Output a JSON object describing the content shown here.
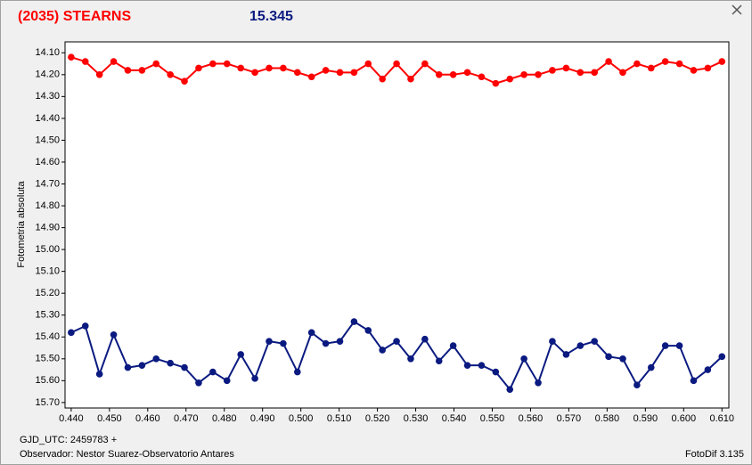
{
  "chart_data": {
    "type": "line",
    "title": "(2035) STEARNS",
    "subtitle": "15.345",
    "ylabel": "Fotometria absoluta",
    "x": [
      0.44,
      0.4437,
      0.4474,
      0.4511,
      0.4548,
      0.4585,
      0.4622,
      0.4659,
      0.4696,
      0.4733,
      0.477,
      0.4807,
      0.4843,
      0.488,
      0.4917,
      0.4954,
      0.4991,
      0.5028,
      0.5065,
      0.5102,
      0.5139,
      0.5176,
      0.5213,
      0.525,
      0.5287,
      0.5324,
      0.5361,
      0.5398,
      0.5435,
      0.5472,
      0.5509,
      0.5546,
      0.5583,
      0.562,
      0.5657,
      0.5693,
      0.573,
      0.5767,
      0.5804,
      0.5841,
      0.5878,
      0.5915,
      0.5952,
      0.5989,
      0.6026,
      0.6063,
      0.61
    ],
    "series": [
      {
        "color": "#ff0000",
        "values": [
          14.12,
          14.14,
          14.2,
          14.14,
          14.18,
          14.18,
          14.15,
          14.2,
          14.23,
          14.17,
          14.15,
          14.15,
          14.17,
          14.19,
          14.17,
          14.17,
          14.19,
          14.21,
          14.18,
          14.19,
          14.19,
          14.15,
          14.22,
          14.15,
          14.22,
          14.15,
          14.2,
          14.2,
          14.19,
          14.21,
          14.24,
          14.22,
          14.2,
          14.2,
          14.18,
          14.17,
          14.19,
          14.19,
          14.14,
          14.19,
          14.15,
          14.17,
          14.14,
          14.15,
          14.18,
          14.17,
          14.14
        ]
      },
      {
        "color": "#0a1a80",
        "values": [
          15.38,
          15.35,
          15.57,
          15.39,
          15.54,
          15.53,
          15.5,
          15.52,
          15.54,
          15.61,
          15.56,
          15.6,
          15.48,
          15.59,
          15.42,
          15.43,
          15.56,
          15.38,
          15.43,
          15.42,
          15.33,
          15.37,
          15.46,
          15.42,
          15.5,
          15.41,
          15.51,
          15.44,
          15.53,
          15.53,
          15.56,
          15.64,
          15.5,
          15.61,
          15.42,
          15.48,
          15.44,
          15.42,
          15.49,
          15.5,
          15.62,
          15.54,
          15.44,
          15.44,
          15.6,
          15.55,
          15.49
        ]
      }
    ],
    "xlim": [
      0.4384,
      0.6118
    ],
    "ylim": [
      14.05,
      15.725
    ],
    "y_inverted": true,
    "xticks": [
      {
        "value": 0.44,
        "label": "0.440"
      },
      {
        "value": 0.45,
        "label": "0.450"
      },
      {
        "value": 0.46,
        "label": "0.460"
      },
      {
        "value": 0.47,
        "label": "0.470"
      },
      {
        "value": 0.48,
        "label": "0.480"
      },
      {
        "value": 0.49,
        "label": "0.490"
      },
      {
        "value": 0.5,
        "label": "0.500"
      },
      {
        "value": 0.51,
        "label": "0.510"
      },
      {
        "value": 0.52,
        "label": "0.520"
      },
      {
        "value": 0.53,
        "label": "0.530"
      },
      {
        "value": 0.54,
        "label": "0.540"
      },
      {
        "value": 0.55,
        "label": "0.550"
      },
      {
        "value": 0.56,
        "label": "0.560"
      },
      {
        "value": 0.57,
        "label": "0.570"
      },
      {
        "value": 0.58,
        "label": "0.580"
      },
      {
        "value": 0.59,
        "label": "0.590"
      },
      {
        "value": 0.6,
        "label": "0.600"
      },
      {
        "value": 0.61,
        "label": "0.610"
      }
    ],
    "yticks": [
      {
        "value": 14.1,
        "label": "14.10"
      },
      {
        "value": 14.2,
        "label": "14.20"
      },
      {
        "value": 14.3,
        "label": "14.30"
      },
      {
        "value": 14.4,
        "label": "14.40"
      },
      {
        "value": 14.5,
        "label": "14.50"
      },
      {
        "value": 14.6,
        "label": "14.60"
      },
      {
        "value": 14.7,
        "label": "14.70"
      },
      {
        "value": 14.8,
        "label": "14.80"
      },
      {
        "value": 14.9,
        "label": "14.90"
      },
      {
        "value": 15.0,
        "label": "15.00"
      },
      {
        "value": 15.1,
        "label": "15.10"
      },
      {
        "value": 15.2,
        "label": "15.20"
      },
      {
        "value": 15.3,
        "label": "15.30"
      },
      {
        "value": 15.4,
        "label": "15.40"
      },
      {
        "value": 15.5,
        "label": "15.50"
      },
      {
        "value": 15.6,
        "label": "15.60"
      },
      {
        "value": 15.7,
        "label": "15.70"
      }
    ],
    "grid": false
  },
  "footer": {
    "gjd": "GJD_UTC: 2459783 +",
    "observer": "Observador: Nestor Suarez-Observatorio Antares",
    "software": "FotoDif 3.135"
  }
}
